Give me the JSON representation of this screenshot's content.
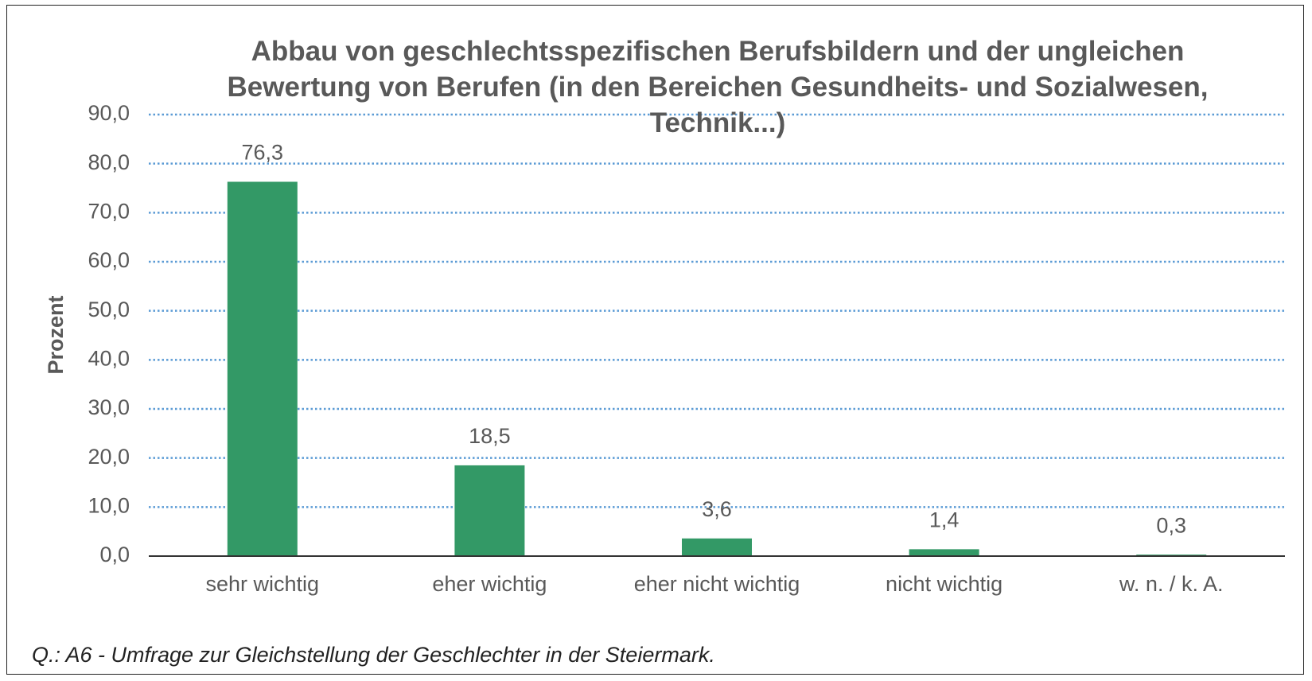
{
  "chart_data": {
    "type": "bar",
    "title": "Abbau von geschlechtsspezifischen Berufsbildern und der ungleichen Bewertung von Berufen (in den Bereichen Gesundheits- und Sozialwesen, Technik...)",
    "y_label": "Prozent",
    "caption": "Q.: A6 - Umfrage zur Gleichstellung der Geschlechter in der Steiermark.",
    "categories": [
      "sehr wichtig",
      "eher wichtig",
      "eher nicht wichtig",
      "nicht wichtig",
      "w. n. / k. A."
    ],
    "values": [
      76.3,
      18.5,
      3.6,
      1.4,
      0.3
    ],
    "value_labels": [
      "76,3",
      "18,5",
      "3,6",
      "1,4",
      "0,3"
    ],
    "color": "#339966",
    "ylim": [
      0,
      90
    ],
    "yticks": [
      {
        "value": 0,
        "label": "0,0"
      },
      {
        "value": 10,
        "label": "10,0"
      },
      {
        "value": 20,
        "label": "20,0"
      },
      {
        "value": 30,
        "label": "30,0"
      },
      {
        "value": 40,
        "label": "40,0"
      },
      {
        "value": 50,
        "label": "50,0"
      },
      {
        "value": 60,
        "label": "60,0"
      },
      {
        "value": 70,
        "label": "70,0"
      },
      {
        "value": 80,
        "label": "80,0"
      },
      {
        "value": 90,
        "label": "90,0"
      }
    ],
    "grid": true
  }
}
